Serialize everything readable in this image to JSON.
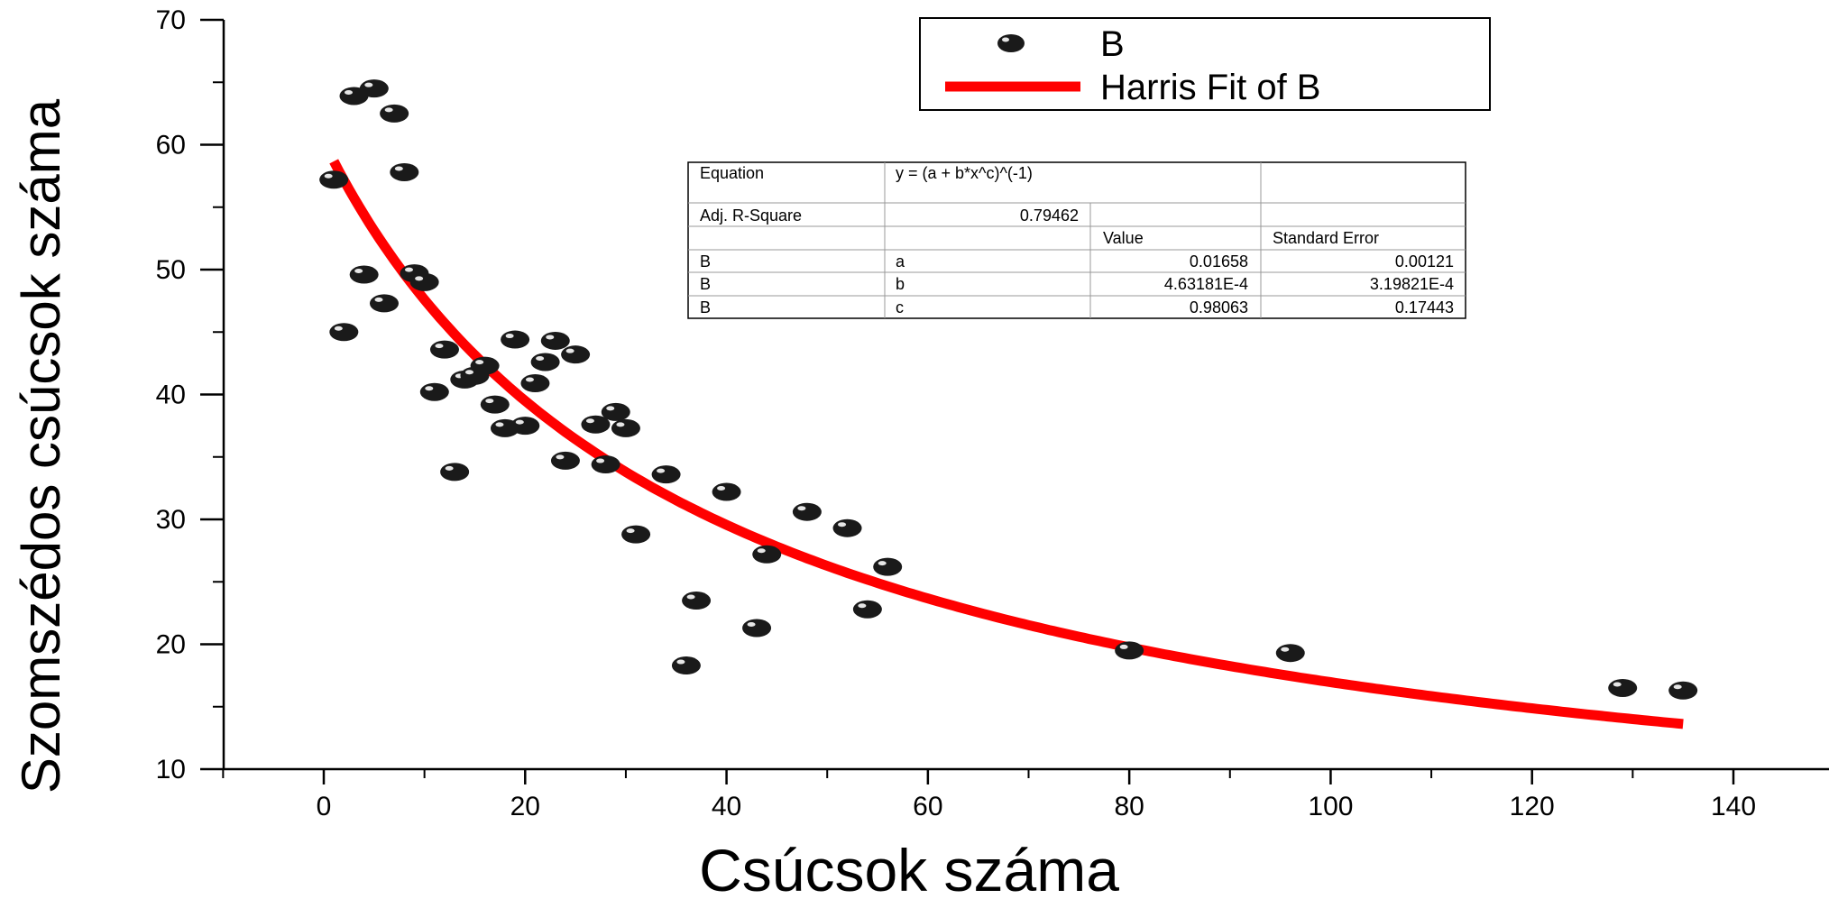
{
  "chart_data": {
    "type": "scatter",
    "xlabel": "Csúcsok száma",
    "ylabel": "Szomszédos csúcsok száma",
    "xlim": [
      -10,
      150
    ],
    "ylim": [
      10,
      70
    ],
    "x_ticks": [
      0,
      20,
      40,
      60,
      80,
      100,
      120,
      140
    ],
    "y_ticks": [
      10,
      20,
      30,
      40,
      50,
      60,
      70
    ],
    "grid": false,
    "legend_position": "top-right",
    "colors": {
      "points": "#1a1a1a",
      "fit": "#ff0000"
    },
    "series": [
      {
        "name": "B",
        "kind": "scatter",
        "points": [
          [
            1,
            57.2
          ],
          [
            2,
            45.0
          ],
          [
            3,
            63.9
          ],
          [
            4,
            49.6
          ],
          [
            5,
            64.5
          ],
          [
            6,
            47.3
          ],
          [
            7,
            62.5
          ],
          [
            8,
            57.8
          ],
          [
            9,
            49.7
          ],
          [
            10,
            49.0
          ],
          [
            11,
            40.2
          ],
          [
            12,
            43.6
          ],
          [
            13,
            33.8
          ],
          [
            14,
            41.2
          ],
          [
            15,
            41.5
          ],
          [
            16,
            42.3
          ],
          [
            17,
            39.2
          ],
          [
            18,
            37.3
          ],
          [
            19,
            44.4
          ],
          [
            20,
            37.5
          ],
          [
            21,
            40.9
          ],
          [
            22,
            42.6
          ],
          [
            23,
            44.3
          ],
          [
            24,
            34.7
          ],
          [
            25,
            43.2
          ],
          [
            27,
            37.6
          ],
          [
            28,
            34.4
          ],
          [
            29,
            38.6
          ],
          [
            30,
            37.3
          ],
          [
            31,
            28.8
          ],
          [
            34,
            33.6
          ],
          [
            36,
            18.3
          ],
          [
            37,
            23.5
          ],
          [
            40,
            32.2
          ],
          [
            43,
            21.3
          ],
          [
            44,
            27.2
          ],
          [
            48,
            30.6
          ],
          [
            52,
            29.3
          ],
          [
            54,
            22.8
          ],
          [
            56,
            26.2
          ],
          [
            80,
            19.5
          ],
          [
            96,
            19.3
          ],
          [
            129,
            16.5
          ],
          [
            135,
            16.3
          ]
        ]
      },
      {
        "name": "Harris Fit of B",
        "kind": "line",
        "model": {
          "a": 0.01658,
          "b": 0.000463181,
          "c": 0.98063
        },
        "x_range": [
          1,
          135
        ]
      }
    ],
    "fit_table": {
      "equation_label": "Equation",
      "equation": "y = (a + b*x^c)^(-1)",
      "r2_label": "Adj. R-Square",
      "r2": "0.79462",
      "col_value": "Value",
      "col_error": "Standard Error",
      "rows": [
        {
          "series": "B",
          "param": "a",
          "value": "0.01658",
          "error": "0.00121"
        },
        {
          "series": "B",
          "param": "b",
          "value": "4.63181E-4",
          "error": "3.19821E-4"
        },
        {
          "series": "B",
          "param": "c",
          "value": "0.98063",
          "error": "0.17443"
        }
      ]
    }
  }
}
